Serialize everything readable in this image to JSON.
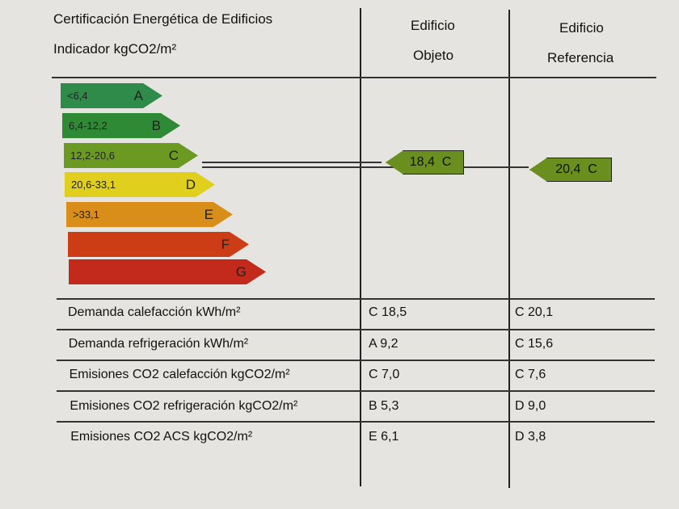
{
  "header": {
    "title": "Certificación Energética de Edificios",
    "indicator": "Indicador kgCO2/m²",
    "col_object_1": "Edificio",
    "col_object_2": "Objeto",
    "col_ref_1": "Edificio",
    "col_ref_2": "Referencia"
  },
  "scale": [
    {
      "range": "<6,4",
      "letter": "A",
      "color": "#2e8b4a"
    },
    {
      "range": "6,4-12,2",
      "letter": "B",
      "color": "#2f8a36"
    },
    {
      "range": "12,2-20,6",
      "letter": "C",
      "color": "#6a9a22"
    },
    {
      "range": "20,6-33,1",
      "letter": "D",
      "color": "#e0cf1c"
    },
    {
      "range": ">33,1",
      "letter": "E",
      "color": "#d98e1a"
    },
    {
      "range": "",
      "letter": "F",
      "color": "#cc3d16"
    },
    {
      "range": "",
      "letter": "G",
      "color": "#c42a1c"
    }
  ],
  "object_rating": "18,4  C",
  "reference_rating": "20,4  C",
  "rows": [
    {
      "label": "Demanda calefacción kWh/m²",
      "object": "C 18,5",
      "reference": "C 20,1"
    },
    {
      "label": "Demanda refrigeración kWh/m²",
      "object": "A 9,2",
      "reference": "C 15,6"
    },
    {
      "label": "Emisiones CO2 calefacción kgCO2/m²",
      "object": "C 7,0",
      "reference": "C 7,6"
    },
    {
      "label": "Emisiones CO2 refrigeración kgCO2/m²",
      "object": "B 5,3",
      "reference": "D 9,0"
    },
    {
      "label": "Emisiones CO2 ACS kgCO2/m²",
      "object": "E 6,1",
      "reference": "D 3,8"
    }
  ]
}
